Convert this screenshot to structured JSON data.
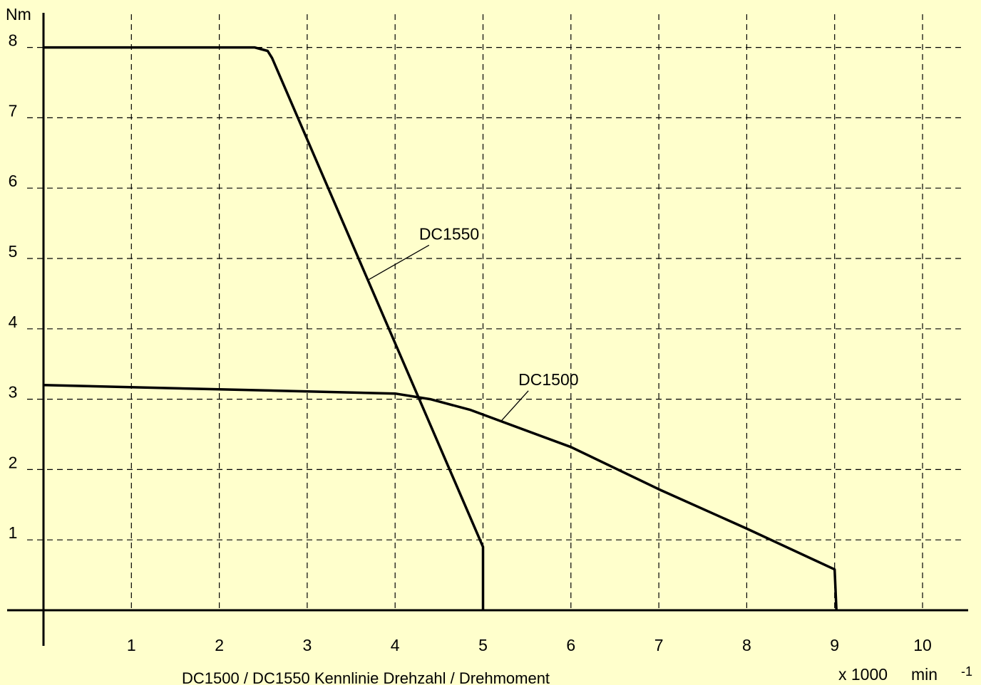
{
  "background": "#ffffcc",
  "chart_data": {
    "type": "line",
    "title": "",
    "caption": "DC1500 / DC1550 Kennlinie Drehzahl / Drehmoment",
    "ylabel": "Nm",
    "xlabel_prefix": "x 1000",
    "xlabel_unit": "min",
    "xlabel_exponent": "-1",
    "xlim": [
      0,
      10
    ],
    "ylim": [
      0,
      8
    ],
    "x_ticks": [
      "1",
      "2",
      "3",
      "4",
      "5",
      "6",
      "7",
      "8",
      "9",
      "10"
    ],
    "y_ticks": [
      "1",
      "2",
      "3",
      "4",
      "5",
      "6",
      "7",
      "8"
    ],
    "grid": true,
    "series": [
      {
        "name": "DC1550",
        "label_at": [
          4.37,
          5.25
        ],
        "leader_to": [
          3.7,
          4.7
        ],
        "points": [
          [
            0,
            8.0
          ],
          [
            2.4,
            8.0
          ],
          [
            2.55,
            7.95
          ],
          [
            2.6,
            7.85
          ],
          [
            5.0,
            0.9
          ],
          [
            5.0,
            0.0
          ]
        ]
      },
      {
        "name": "DC1500",
        "label_at": [
          5.5,
          3.18
        ],
        "leader_to": [
          5.2,
          2.68
        ],
        "points": [
          [
            0,
            3.2
          ],
          [
            4.0,
            3.08
          ],
          [
            4.4,
            3.0
          ],
          [
            4.85,
            2.85
          ],
          [
            6.0,
            2.32
          ],
          [
            7.0,
            1.72
          ],
          [
            8.0,
            1.16
          ],
          [
            9.0,
            0.58
          ],
          [
            9.02,
            0.0
          ]
        ]
      }
    ]
  }
}
